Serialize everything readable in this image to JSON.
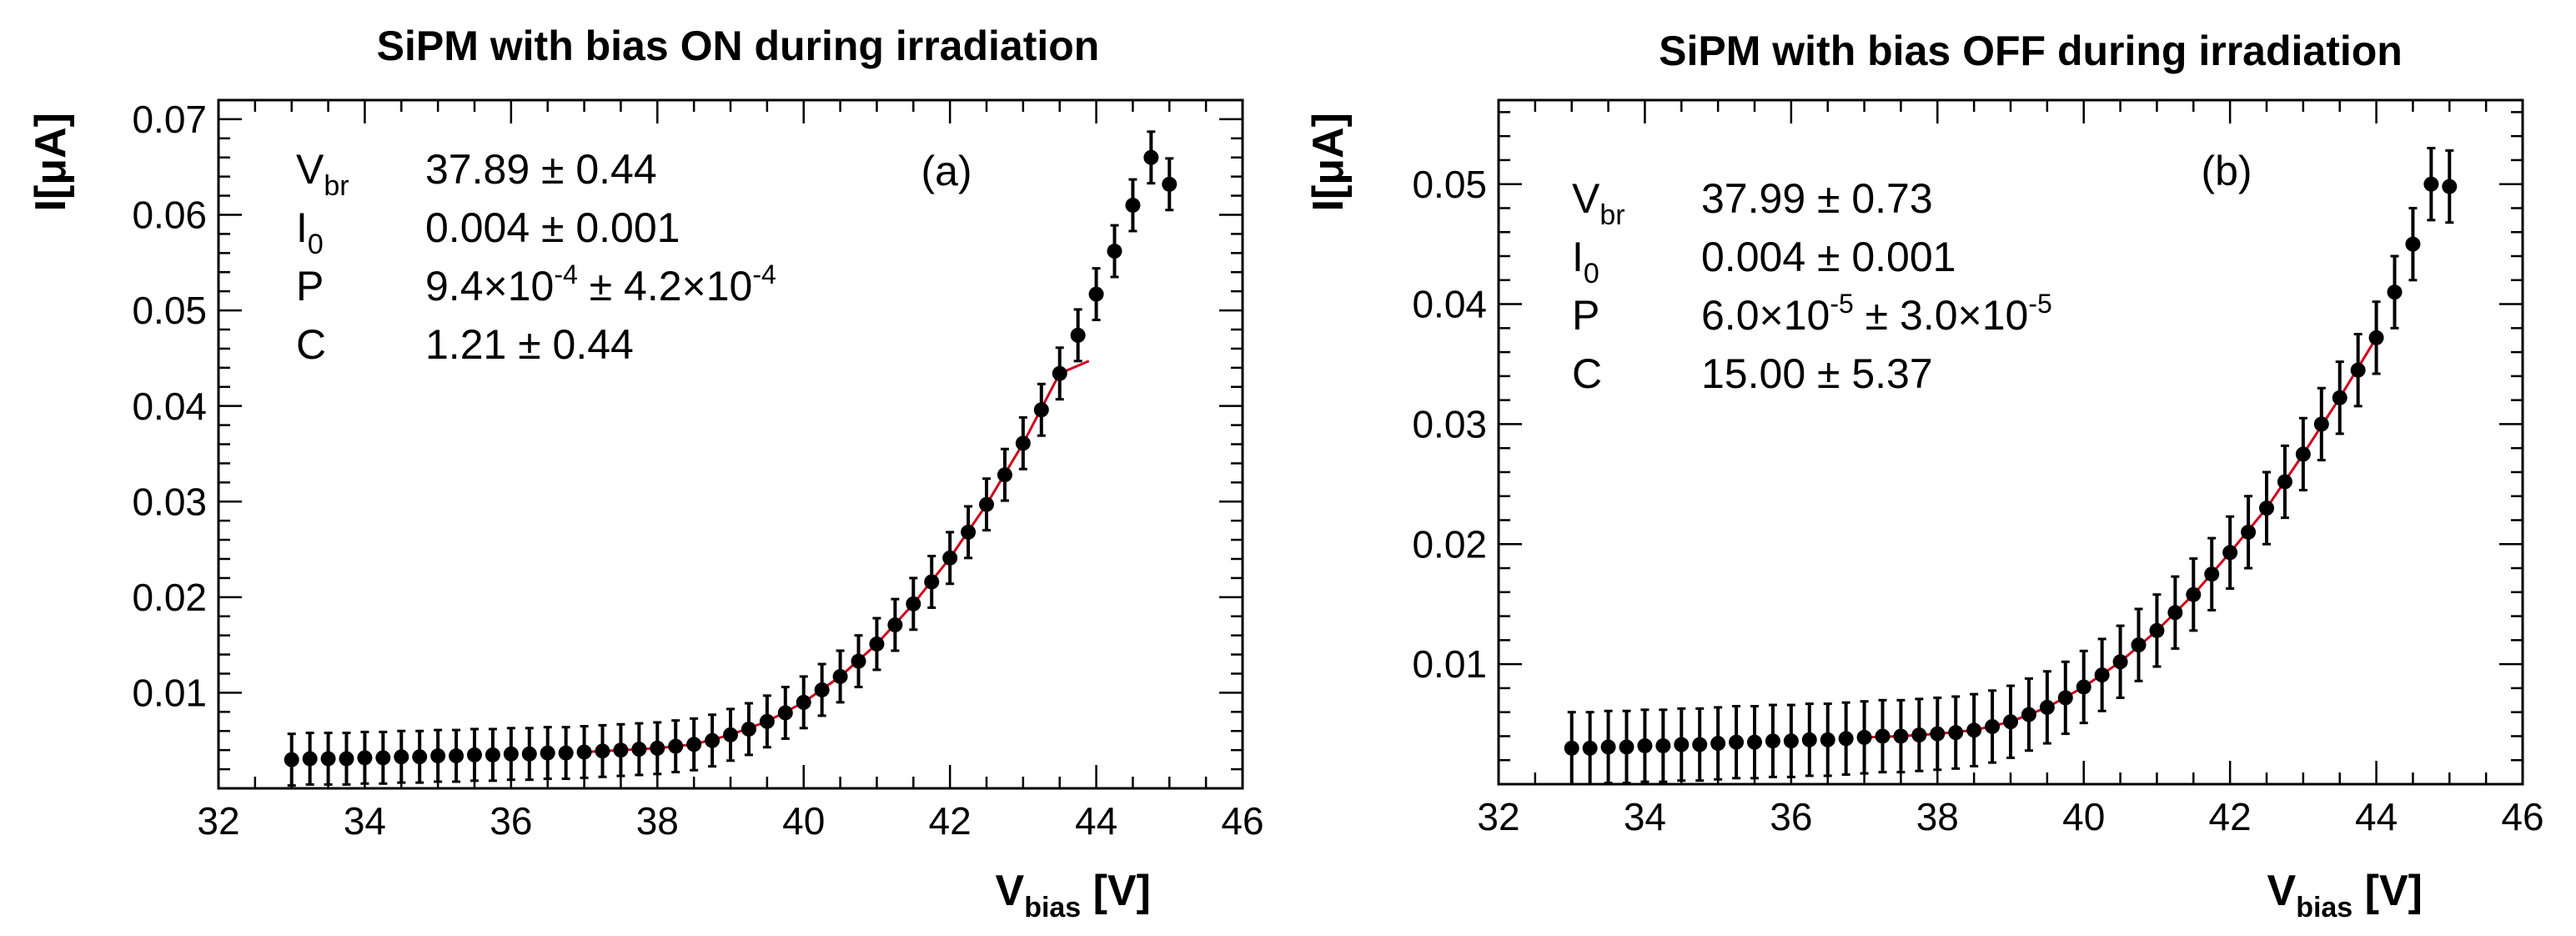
{
  "chart_data": [
    {
      "type": "scatter",
      "panel": "left",
      "title": "SiPM with bias ON during irradiation",
      "panel_tag": "(a)",
      "xlabel_main": "V",
      "xlabel_sub": "bias",
      "xlabel_unit": "[V]",
      "ylabel": "I[μA]",
      "xlim": [
        32,
        46
      ],
      "ylim": [
        0,
        0.072
      ],
      "x_ticks": [
        "32",
        "34",
        "36",
        "38",
        "40",
        "42",
        "44",
        "46"
      ],
      "y_ticks": [
        "0.01",
        "0.02",
        "0.03",
        "0.04",
        "0.05",
        "0.06",
        "0.07"
      ],
      "fit_params": [
        {
          "name": "V",
          "sub": "br",
          "value": "37.89 ± 0.44"
        },
        {
          "name": "I",
          "sub": "0",
          "value": "0.004 ± 0.001"
        },
        {
          "name": "P",
          "sub": "",
          "value": "9.4×10",
          "exp1": "-4",
          "mid": " ± 4.2×10",
          "exp2": "-4"
        },
        {
          "name": "C",
          "sub": "",
          "value": "1.21 ± 0.44"
        }
      ],
      "series": [
        {
          "name": "data",
          "x": [
            33.0,
            33.25,
            33.5,
            33.75,
            34.0,
            34.25,
            34.5,
            34.75,
            35.0,
            35.25,
            35.5,
            35.75,
            36.0,
            36.25,
            36.5,
            36.75,
            37.0,
            37.25,
            37.5,
            37.75,
            38.0,
            38.25,
            38.5,
            38.75,
            39.0,
            39.25,
            39.5,
            39.75,
            40.0,
            40.25,
            40.5,
            40.75,
            41.0,
            41.25,
            41.5,
            41.75,
            42.0,
            42.25,
            42.5,
            42.75,
            43.0,
            43.25,
            43.5,
            43.75,
            44.0,
            44.25,
            44.5,
            44.75,
            45.0
          ],
          "y": [
            0.003,
            0.0031,
            0.0031,
            0.0031,
            0.0032,
            0.0032,
            0.0033,
            0.0033,
            0.0034,
            0.0034,
            0.0035,
            0.0035,
            0.0036,
            0.0036,
            0.0037,
            0.0037,
            0.0038,
            0.0039,
            0.004,
            0.0041,
            0.0042,
            0.0044,
            0.0046,
            0.005,
            0.0056,
            0.0062,
            0.007,
            0.0079,
            0.009,
            0.0103,
            0.0117,
            0.0133,
            0.0151,
            0.0171,
            0.0193,
            0.0216,
            0.0241,
            0.0268,
            0.0297,
            0.0328,
            0.0361,
            0.0396,
            0.0434,
            0.0474,
            0.0517,
            0.0562,
            0.061,
            0.066,
            0.0632
          ],
          "err": 0.0027
        },
        {
          "name": "fit",
          "x": [
            37.0,
            37.5,
            38.0,
            38.5,
            39.0,
            39.5,
            40.0,
            40.5,
            41.0,
            41.5,
            42.0,
            42.5,
            43.0,
            43.5,
            43.9
          ],
          "y": [
            0.0038,
            0.004,
            0.0042,
            0.0046,
            0.0056,
            0.007,
            0.009,
            0.0117,
            0.0151,
            0.0193,
            0.0241,
            0.0297,
            0.0361,
            0.0434,
            0.0447
          ]
        }
      ]
    },
    {
      "type": "scatter",
      "panel": "right",
      "title": "SiPM with bias OFF during irradiation",
      "panel_tag": "(b)",
      "xlabel_main": "V",
      "xlabel_sub": "bias",
      "xlabel_unit": "[V]",
      "ylabel": "I[μA]",
      "xlim": [
        32,
        46
      ],
      "ylim": [
        0,
        0.057
      ],
      "x_ticks": [
        "32",
        "34",
        "36",
        "38",
        "40",
        "42",
        "44",
        "46"
      ],
      "y_ticks": [
        "0.01",
        "0.02",
        "0.03",
        "0.04",
        "0.05"
      ],
      "fit_params": [
        {
          "name": "V",
          "sub": "br",
          "value": "37.99 ± 0.73"
        },
        {
          "name": "I",
          "sub": "0",
          "value": "0.004 ± 0.001"
        },
        {
          "name": "P",
          "sub": "",
          "value": "6.0×10",
          "exp1": "-5",
          "mid": " ± 3.0×10",
          "exp2": "-5"
        },
        {
          "name": "C",
          "sub": "",
          "value": "15.00 ± 5.37"
        }
      ],
      "series": [
        {
          "name": "data",
          "x": [
            33.0,
            33.25,
            33.5,
            33.75,
            34.0,
            34.25,
            34.5,
            34.75,
            35.0,
            35.25,
            35.5,
            35.75,
            36.0,
            36.25,
            36.5,
            36.75,
            37.0,
            37.25,
            37.5,
            37.75,
            38.0,
            38.25,
            38.5,
            38.75,
            39.0,
            39.25,
            39.5,
            39.75,
            40.0,
            40.25,
            40.5,
            40.75,
            41.0,
            41.25,
            41.5,
            41.75,
            42.0,
            42.25,
            42.5,
            42.75,
            43.0,
            43.25,
            43.5,
            43.75,
            44.0,
            44.25,
            44.5,
            44.75,
            45.0
          ],
          "y": [
            0.003,
            0.003,
            0.0031,
            0.0031,
            0.0032,
            0.0032,
            0.0033,
            0.0033,
            0.0034,
            0.0035,
            0.0035,
            0.0036,
            0.0036,
            0.0037,
            0.0037,
            0.0038,
            0.0039,
            0.004,
            0.004,
            0.0041,
            0.0042,
            0.0043,
            0.0045,
            0.0048,
            0.0052,
            0.0058,
            0.0064,
            0.0072,
            0.0081,
            0.0091,
            0.0102,
            0.0116,
            0.0128,
            0.0143,
            0.0158,
            0.0175,
            0.0193,
            0.021,
            0.023,
            0.0252,
            0.0275,
            0.03,
            0.0322,
            0.0345,
            0.0372,
            0.041,
            0.045,
            0.05,
            0.0498
          ],
          "err": 0.003
        },
        {
          "name": "fit",
          "x": [
            37.0,
            37.5,
            38.0,
            38.5,
            39.0,
            39.5,
            40.0,
            40.5,
            41.0,
            41.5,
            42.0,
            42.5,
            43.0,
            43.5,
            44.0
          ],
          "y": [
            0.0039,
            0.004,
            0.0042,
            0.0045,
            0.0052,
            0.0064,
            0.0081,
            0.0102,
            0.0128,
            0.0158,
            0.0193,
            0.023,
            0.0275,
            0.0322,
            0.0372
          ]
        }
      ]
    }
  ]
}
